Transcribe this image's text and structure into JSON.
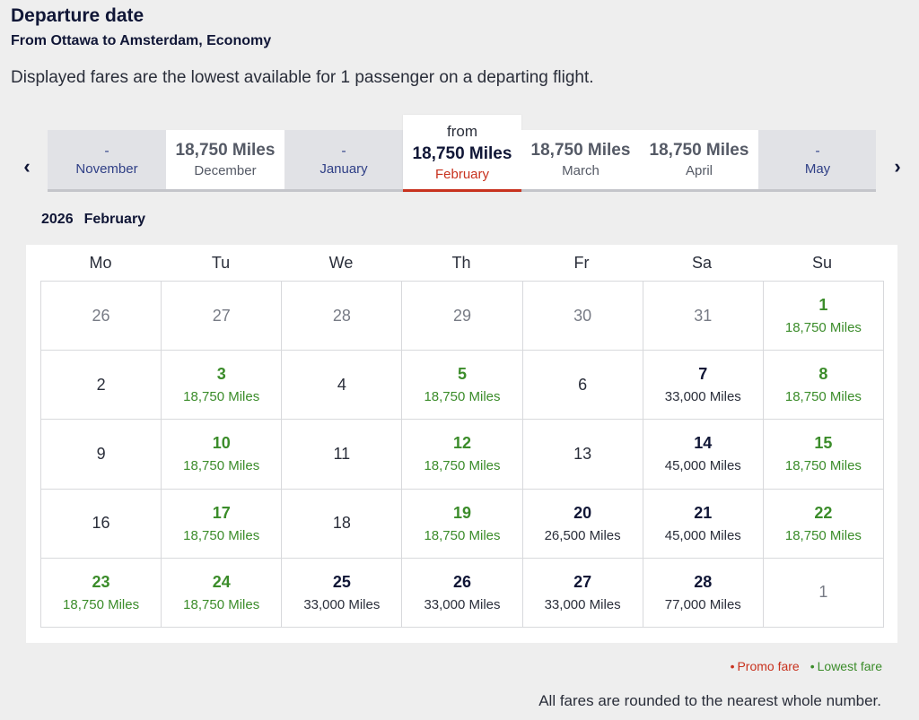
{
  "header": {
    "title": "Departure date",
    "subtitle": "From Ottawa to Amsterdam, Economy",
    "note": "Displayed fares are the lowest available for 1 passenger on a departing flight."
  },
  "months": {
    "prev_icon": "chevron-left-icon",
    "next_icon": "chevron-right-icon",
    "prev_glyph": "‹",
    "next_glyph": "›",
    "tabs": [
      {
        "month": "November",
        "price": "-",
        "priced": false
      },
      {
        "month": "December",
        "price": "18,750 Miles",
        "priced": true
      },
      {
        "month": "January",
        "price": "-",
        "priced": false
      },
      {
        "month": "February",
        "price": "18,750 Miles",
        "priced": true,
        "selected": true,
        "prefix": "from"
      },
      {
        "month": "March",
        "price": "18,750 Miles",
        "priced": true
      },
      {
        "month": "April",
        "price": "18,750 Miles",
        "priced": true
      },
      {
        "month": "May",
        "price": "-",
        "priced": false
      }
    ]
  },
  "calendar": {
    "year": "2026",
    "month": "February",
    "weekdays": [
      "Mo",
      "Tu",
      "We",
      "Th",
      "Fr",
      "Sa",
      "Su"
    ],
    "days": [
      {
        "d": "26",
        "outside": true
      },
      {
        "d": "27",
        "outside": true
      },
      {
        "d": "28",
        "outside": true
      },
      {
        "d": "29",
        "outside": true
      },
      {
        "d": "30",
        "outside": true
      },
      {
        "d": "31",
        "outside": true
      },
      {
        "d": "1",
        "miles": "18,750 Miles",
        "lowest": true
      },
      {
        "d": "2"
      },
      {
        "d": "3",
        "miles": "18,750 Miles",
        "lowest": true
      },
      {
        "d": "4"
      },
      {
        "d": "5",
        "miles": "18,750 Miles",
        "lowest": true
      },
      {
        "d": "6"
      },
      {
        "d": "7",
        "miles": "33,000 Miles"
      },
      {
        "d": "8",
        "miles": "18,750 Miles",
        "lowest": true
      },
      {
        "d": "9"
      },
      {
        "d": "10",
        "miles": "18,750 Miles",
        "lowest": true
      },
      {
        "d": "11"
      },
      {
        "d": "12",
        "miles": "18,750 Miles",
        "lowest": true
      },
      {
        "d": "13"
      },
      {
        "d": "14",
        "miles": "45,000 Miles"
      },
      {
        "d": "15",
        "miles": "18,750 Miles",
        "lowest": true
      },
      {
        "d": "16"
      },
      {
        "d": "17",
        "miles": "18,750 Miles",
        "lowest": true
      },
      {
        "d": "18"
      },
      {
        "d": "19",
        "miles": "18,750 Miles",
        "lowest": true
      },
      {
        "d": "20",
        "miles": "26,500 Miles"
      },
      {
        "d": "21",
        "miles": "45,000 Miles"
      },
      {
        "d": "22",
        "miles": "18,750 Miles",
        "lowest": true
      },
      {
        "d": "23",
        "miles": "18,750 Miles",
        "lowest": true
      },
      {
        "d": "24",
        "miles": "18,750 Miles",
        "lowest": true
      },
      {
        "d": "25",
        "miles": "33,000 Miles"
      },
      {
        "d": "26",
        "miles": "33,000 Miles"
      },
      {
        "d": "27",
        "miles": "33,000 Miles"
      },
      {
        "d": "28",
        "miles": "77,000 Miles"
      },
      {
        "d": "1",
        "outside": true
      }
    ]
  },
  "legend": {
    "promo": "Promo fare",
    "lowest": "Lowest fare",
    "dot": "•",
    "promo_color": "#c8321e",
    "lowest_color": "#3b8c2a"
  },
  "footnote": "All fares are rounded to the nearest whole number."
}
